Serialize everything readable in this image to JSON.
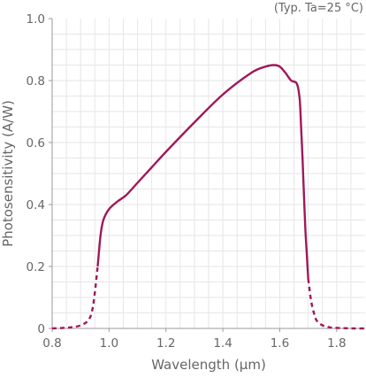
{
  "chart_data": {
    "type": "line",
    "title": "",
    "annotation": "(Typ. Ta=25 °C)",
    "xlabel": "Wavelength (μm)",
    "ylabel": "Photosensitivity (A/W)",
    "xlim": [
      0.8,
      1.9
    ],
    "ylim": [
      0,
      1.0
    ],
    "xticks": [
      0.8,
      1.0,
      1.2,
      1.4,
      1.6,
      1.8
    ],
    "xtick_labels": [
      "0.8",
      "1.0",
      "1.2",
      "1.4",
      "1.6",
      "1.8"
    ],
    "yticks": [
      0,
      0.2,
      0.4,
      0.6,
      0.8,
      1.0
    ],
    "ytick_labels": [
      "0",
      "0.2",
      "0.4",
      "0.6",
      "0.8",
      "1.0"
    ],
    "grid": true,
    "line_color": "#a0185a",
    "grid_color": "#e6e6e6",
    "series": [
      {
        "style": "dashed",
        "x": [
          0.8,
          0.86,
          0.9,
          0.93,
          0.945,
          0.96
        ],
        "y": [
          0.0,
          0.003,
          0.01,
          0.03,
          0.08,
          0.2
        ]
      },
      {
        "style": "solid",
        "x": [
          0.96,
          0.97,
          0.98,
          1.0,
          1.03,
          1.06,
          1.1,
          1.15,
          1.2,
          1.3,
          1.4,
          1.5,
          1.55,
          1.58,
          1.6,
          1.62,
          1.64,
          1.66,
          1.67,
          1.675,
          1.68,
          1.685,
          1.69,
          1.695,
          1.7
        ],
        "y": [
          0.2,
          0.3,
          0.35,
          0.385,
          0.41,
          0.43,
          0.47,
          0.52,
          0.57,
          0.665,
          0.755,
          0.825,
          0.845,
          0.85,
          0.845,
          0.825,
          0.8,
          0.79,
          0.74,
          0.65,
          0.55,
          0.43,
          0.32,
          0.24,
          0.16
        ]
      },
      {
        "style": "dashed",
        "x": [
          1.7,
          1.71,
          1.72,
          1.73,
          1.75,
          1.78,
          1.82,
          1.86,
          1.9
        ],
        "y": [
          0.16,
          0.09,
          0.05,
          0.025,
          0.01,
          0.003,
          0.001,
          0.0,
          0.0
        ]
      }
    ]
  }
}
